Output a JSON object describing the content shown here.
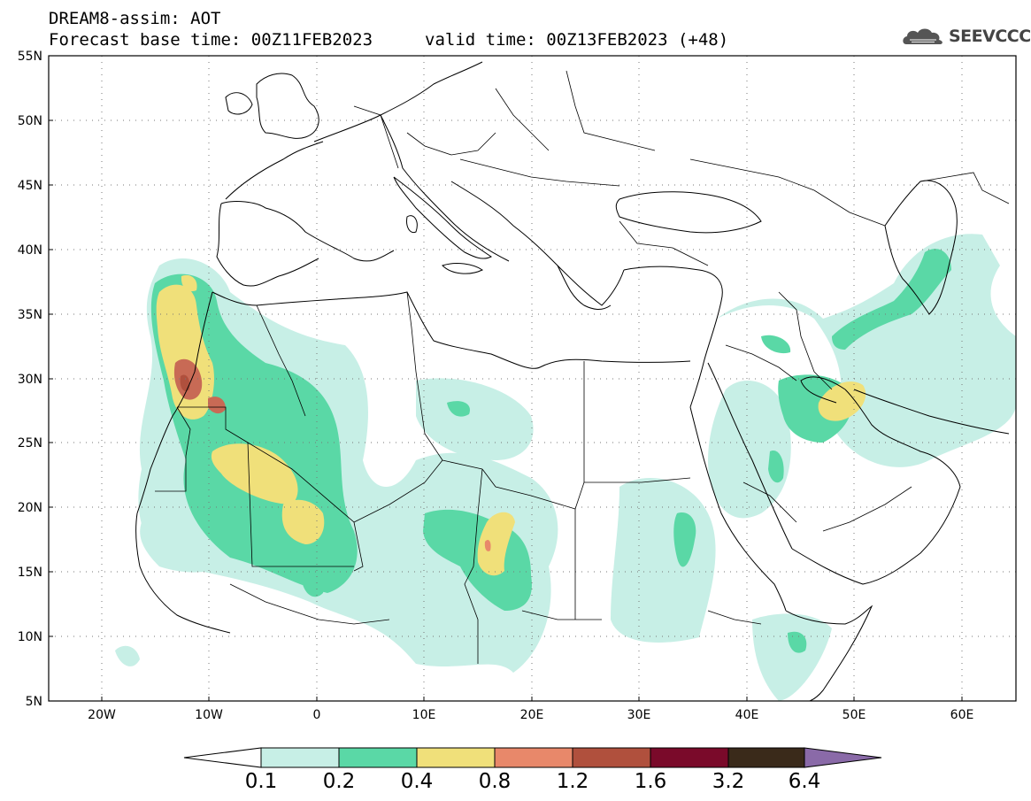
{
  "header": {
    "title": "DREAM8-assim: AOT",
    "base_time": "Forecast base time: 00Z11FEB2023",
    "valid_time": "valid time: 00Z13FEB2023 (+48)"
  },
  "logo": {
    "text": "SEEVCCC"
  },
  "map": {
    "lat_labels": [
      "55N",
      "50N",
      "45N",
      "40N",
      "35N",
      "30N",
      "25N",
      "20N",
      "15N",
      "10N",
      "5N"
    ],
    "lon_labels": [
      "20W",
      "10W",
      "0",
      "10E",
      "20E",
      "30E",
      "40E",
      "50E",
      "60E"
    ],
    "lat_range": [
      5,
      55
    ],
    "lon_range": [
      -25,
      65
    ],
    "grid": "dotted"
  },
  "colorbar": {
    "labels": [
      "0.1",
      "0.2",
      "0.4",
      "0.8",
      "1.2",
      "1.6",
      "3.2",
      "6.4"
    ],
    "colors": [
      "#ffffff",
      "#c7efe6",
      "#5ad8a6",
      "#f0e07a",
      "#e8886a",
      "#b0503d",
      "#7a0a2a",
      "#3a2a1a",
      "#8a6aa8"
    ]
  }
}
